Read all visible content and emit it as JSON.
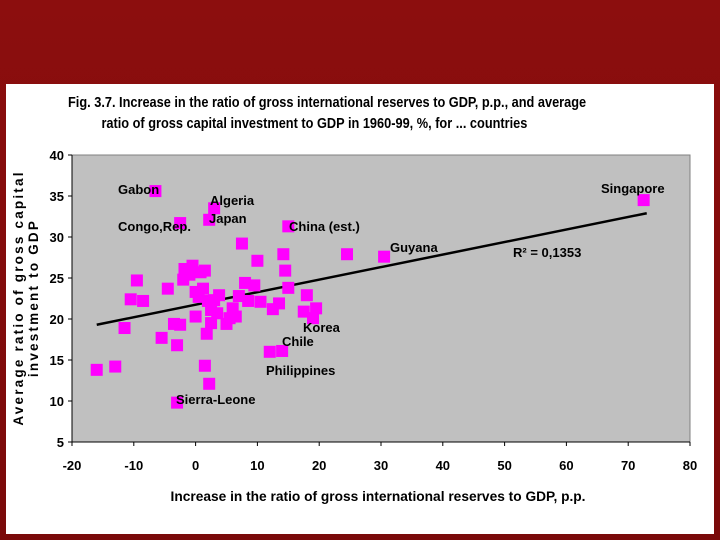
{
  "figure": {
    "title_line1": "Fig. 3.7. Increase in the ratio of gross international reserves to GDP, p.p., and average",
    "title_line2": "ratio of gross capital investment to GDP in 1960-99, %, for ... countries"
  },
  "chart_data": {
    "type": "scatter",
    "xlabel": "Increase in the ratio of gross international reserves to GDP, p.p.",
    "ylabel": "Average ratio of gross capital investment to GDP",
    "xlim": [
      -20,
      80
    ],
    "ylim": [
      5,
      40
    ],
    "x_ticks": [
      -20,
      -10,
      0,
      10,
      20,
      30,
      40,
      50,
      60,
      70,
      80
    ],
    "y_ticks": [
      5,
      10,
      15,
      20,
      25,
      30,
      35,
      40
    ],
    "grid": false,
    "marker_color": "#ff00ff",
    "plot_background": "#c0c0c0",
    "trendline": {
      "x": [
        -16,
        73
      ],
      "y": [
        19.3,
        32.9
      ],
      "r2_label": "R² = 0,1353"
    },
    "points": [
      [
        -16,
        13.8
      ],
      [
        -13,
        14.2
      ],
      [
        -11.5,
        18.9
      ],
      [
        -10.5,
        22.4
      ],
      [
        -9.5,
        24.7
      ],
      [
        -8.5,
        22.2
      ],
      [
        -6.5,
        35.6
      ],
      [
        -5.5,
        17.7
      ],
      [
        -4.5,
        23.7
      ],
      [
        -3.5,
        19.4
      ],
      [
        -3,
        16.8
      ],
      [
        -3,
        9.8
      ],
      [
        -2.5,
        19.3
      ],
      [
        -2.5,
        31.7
      ],
      [
        -2,
        24.8
      ],
      [
        -1.8,
        26.1
      ],
      [
        -1,
        25.4
      ],
      [
        -0.5,
        26.5
      ],
      [
        0,
        23.3
      ],
      [
        0,
        20.3
      ],
      [
        0.5,
        22.7
      ],
      [
        0.8,
        25.7
      ],
      [
        1.2,
        23.7
      ],
      [
        1.5,
        25.9
      ],
      [
        1.5,
        14.3
      ],
      [
        1.8,
        18.2
      ],
      [
        2,
        22.2
      ],
      [
        2.2,
        32.1
      ],
      [
        2.2,
        12.1
      ],
      [
        2.5,
        19.5
      ],
      [
        2.5,
        21.1
      ],
      [
        3,
        33.5
      ],
      [
        3,
        22.3
      ],
      [
        3.5,
        20.7
      ],
      [
        3.8,
        22.9
      ],
      [
        5,
        19.4
      ],
      [
        5.5,
        20.1
      ],
      [
        6,
        21.3
      ],
      [
        6.5,
        20.3
      ],
      [
        7,
        22.8
      ],
      [
        7.5,
        29.2
      ],
      [
        8,
        24.4
      ],
      [
        8.5,
        22.2
      ],
      [
        9.5,
        24.1
      ],
      [
        10,
        27.1
      ],
      [
        10.5,
        22.1
      ],
      [
        12,
        16
      ],
      [
        12.5,
        21.2
      ],
      [
        13.5,
        21.9
      ],
      [
        14,
        16.1
      ],
      [
        14.2,
        27.9
      ],
      [
        14.5,
        25.9
      ],
      [
        15,
        31.3
      ],
      [
        15,
        23.8
      ],
      [
        17.5,
        20.9
      ],
      [
        18,
        22.9
      ],
      [
        19,
        20.1
      ],
      [
        19.5,
        21.3
      ],
      [
        24.5,
        27.9
      ],
      [
        30.5,
        27.6
      ],
      [
        72.5,
        34.5
      ]
    ],
    "annotations": [
      {
        "text": "Gabon"
      },
      {
        "text": "Algeria"
      },
      {
        "text": "Japan"
      },
      {
        "text": "Congo,Rep."
      },
      {
        "text": "China (est.)"
      },
      {
        "text": "Guyana"
      },
      {
        "text": "Singapore"
      },
      {
        "text": "Korea"
      },
      {
        "text": "Chile"
      },
      {
        "text": "Philippines"
      },
      {
        "text": "Sierra-Leone"
      }
    ]
  }
}
